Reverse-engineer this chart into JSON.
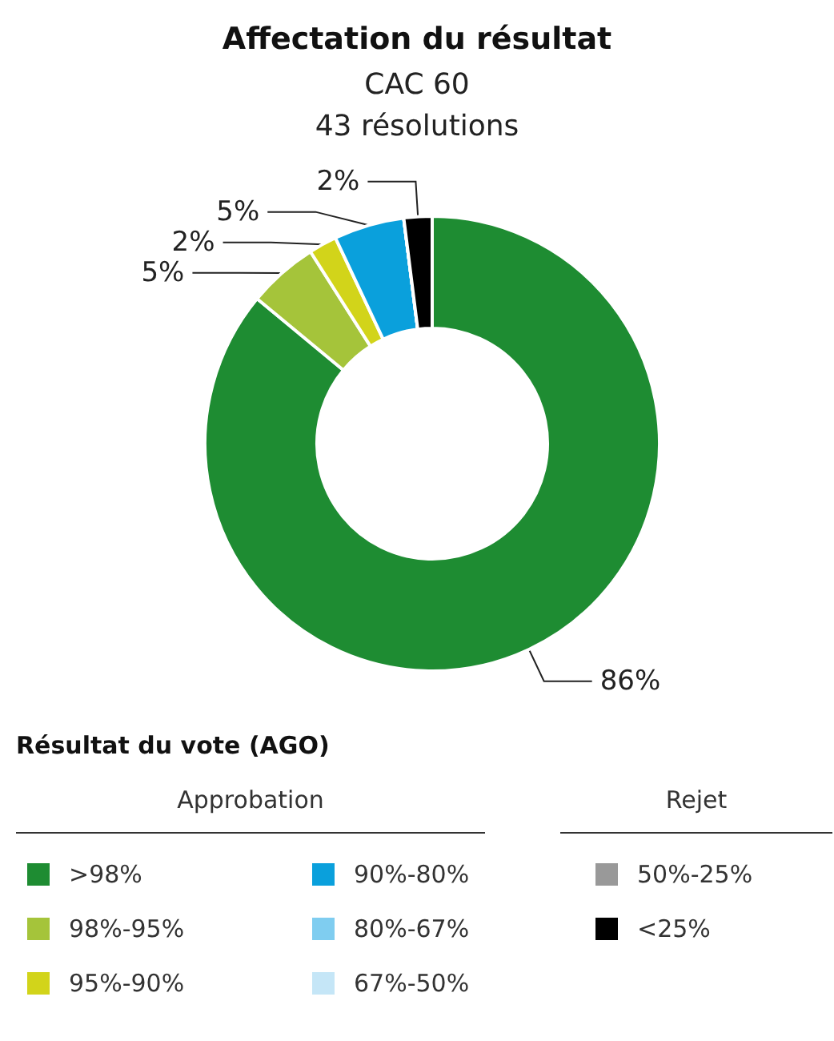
{
  "chart_data": {
    "type": "donut",
    "title": "Affectation du résultat",
    "subtitle": "CAC 60\n43 résolutions",
    "legend_title": "Résultat du vote (AGO)",
    "categories": [
      ">98%",
      "98%-95%",
      "95%-90%",
      "90%-80%",
      "80%-67%",
      "67%-50%",
      "50%-25%",
      "<25%"
    ],
    "values": [
      86,
      5,
      2,
      5,
      0,
      0,
      0,
      2
    ],
    "value_labels": [
      "86%",
      "5%",
      "2%",
      "5%",
      null,
      null,
      null,
      "2%"
    ],
    "colors": [
      "#1e8c32",
      "#a5c43a",
      "#d2d41a",
      "#0aa0dc",
      "#7fcdf0",
      "#c5e6f7",
      "#999999",
      "#000000"
    ],
    "annotations": [
      "Approbation",
      "Rejet"
    ],
    "legend": "bottom"
  }
}
